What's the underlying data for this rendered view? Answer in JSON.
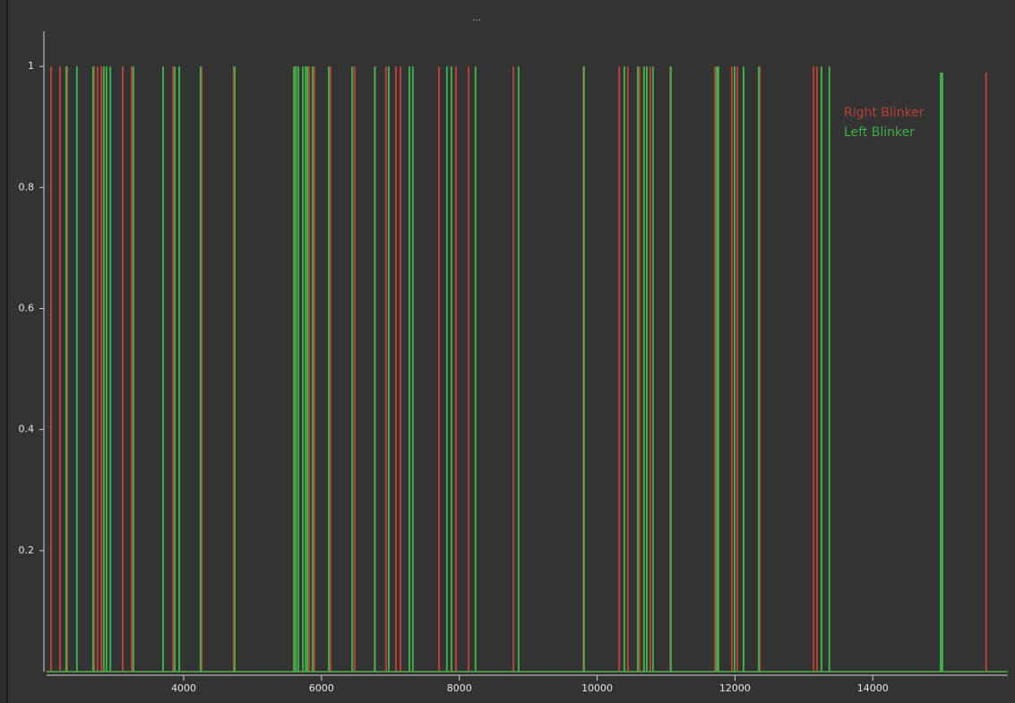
{
  "panel": {
    "handle": "..."
  },
  "chart_data": {
    "type": "impulse",
    "xlim": [
      2010,
      15960
    ],
    "ylim": [
      0,
      1.058
    ],
    "xticks": [
      4000,
      6000,
      8000,
      10000,
      12000,
      14000
    ],
    "yticks": [
      0.2,
      0.4,
      0.6,
      0.8,
      1
    ],
    "legend": "upper right",
    "series": [
      {
        "name": "Right Blinker",
        "color": "#b8403a",
        "x": [
          2075,
          2205,
          2310,
          2700,
          2750,
          2805,
          3115,
          3245,
          3845,
          4260,
          4725,
          5625,
          5820,
          5895,
          6130,
          6480,
          6770,
          6935,
          7080,
          7145,
          7705,
          7950,
          8135,
          8785,
          9800,
          10320,
          10445,
          10615,
          10770,
          11060,
          11710,
          11955,
          12035,
          12360,
          13140,
          13190,
          15645
        ],
        "values": [
          1,
          1,
          1,
          1,
          1,
          1,
          1,
          1,
          1,
          1,
          1,
          1,
          1,
          1,
          1,
          1,
          1,
          1,
          1,
          1,
          1,
          1,
          1,
          1,
          1,
          1,
          1,
          1,
          1,
          1,
          1,
          1,
          1,
          1,
          1,
          1,
          0.99
        ]
      },
      {
        "name": "Left Blinker",
        "color": "#3fae49",
        "x": [
          2295,
          2450,
          2685,
          2840,
          2880,
          2935,
          3270,
          3700,
          3870,
          3935,
          4245,
          4740,
          5600,
          5630,
          5665,
          5730,
          5770,
          5795,
          5870,
          6105,
          6445,
          6775,
          6975,
          7275,
          7325,
          7820,
          7885,
          8235,
          8860,
          9810,
          10395,
          10590,
          10680,
          10720,
          10810,
          11070,
          11735,
          11760,
          11995,
          12125,
          12345,
          13255,
          13370,
          14985,
          15010
        ],
        "values": [
          1,
          1,
          1,
          1,
          1,
          1,
          1,
          1,
          1,
          1,
          1,
          1,
          1,
          1,
          1,
          1,
          1,
          1,
          1,
          1,
          1,
          1,
          1,
          1,
          1,
          1,
          1,
          1,
          1,
          1,
          1,
          1,
          1,
          1,
          1,
          1,
          1,
          1,
          1,
          1,
          1,
          1,
          1,
          0.99,
          0.99
        ]
      }
    ]
  }
}
